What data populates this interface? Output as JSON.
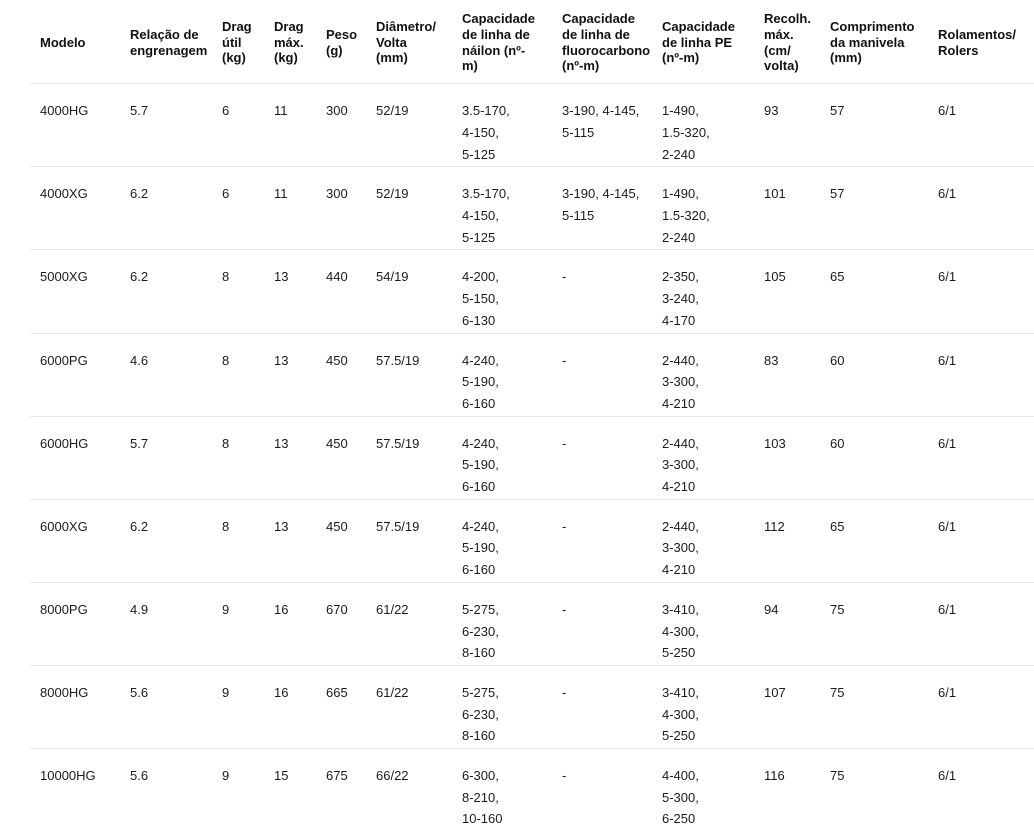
{
  "table": {
    "column_keys": [
      "modelo",
      "gear-ratio",
      "drag-util",
      "drag-max",
      "peso",
      "diametro-volta",
      "linha-nailon",
      "linha-fluorocarbono",
      "linha-pe",
      "recolhimento-max",
      "comprimento-manivela",
      "rolamentos"
    ],
    "columns": [
      "Modelo",
      "Relação de\nengrenagem",
      "Drag\nútil\n(kg)",
      "Drag\nmáx.\n(kg)",
      "Peso\n(g)",
      "Diâmetro/\nVolta\n(mm)",
      "Capacidade\nde linha de\nnáilon (nº-\nm)",
      "Capacidade\nde linha de\nfluorocarbono\n(nº-m)",
      "Capacidade\nde linha PE\n(nº-m)",
      "Recolh.\nmáx.\n(cm/\nvolta)",
      "Comprimento\nda manivela\n(mm)",
      "Rolamentos/\nRolers"
    ],
    "rows": [
      [
        "4000HG",
        "5.7",
        "6",
        "11",
        "300",
        "52/19",
        "3.5-170,\n4-150,\n5-125",
        "3-190, 4-145,\n5-115",
        "1-490,\n1.5-320,\n2-240",
        "93",
        "57",
        "6/1"
      ],
      [
        "4000XG",
        "6.2",
        "6",
        "11",
        "300",
        "52/19",
        "3.5-170,\n4-150,\n5-125",
        "3-190, 4-145,\n5-115",
        "1-490,\n1.5-320,\n2-240",
        "101",
        "57",
        "6/1"
      ],
      [
        "5000XG",
        "6.2",
        "8",
        "13",
        "440",
        "54/19",
        "4-200,\n5-150,\n6-130",
        "-",
        "2-350,\n3-240,\n4-170",
        "105",
        "65",
        "6/1"
      ],
      [
        "6000PG",
        "4.6",
        "8",
        "13",
        "450",
        "57.5/19",
        "4-240,\n5-190,\n6-160",
        "-",
        "2-440,\n3-300,\n4-210",
        "83",
        "60",
        "6/1"
      ],
      [
        "6000HG",
        "5.7",
        "8",
        "13",
        "450",
        "57.5/19",
        "4-240,\n5-190,\n6-160",
        "-",
        "2-440,\n3-300,\n4-210",
        "103",
        "60",
        "6/1"
      ],
      [
        "6000XG",
        "6.2",
        "8",
        "13",
        "450",
        "57.5/19",
        "4-240,\n5-190,\n6-160",
        "-",
        "2-440,\n3-300,\n4-210",
        "112",
        "65",
        "6/1"
      ],
      [
        "8000PG",
        "4.9",
        "9",
        "16",
        "670",
        "61/22",
        "5-275,\n6-230,\n8-160",
        "-",
        "3-410,\n4-300,\n5-250",
        "94",
        "75",
        "6/1"
      ],
      [
        "8000HG",
        "5.6",
        "9",
        "16",
        "665",
        "61/22",
        "5-275,\n6-230,\n8-160",
        "-",
        "3-410,\n4-300,\n5-250",
        "107",
        "75",
        "6/1"
      ],
      [
        "10000HG",
        "5.6",
        "9",
        "15",
        "675",
        "66/22",
        "6-300,\n8-210,\n10-160",
        "-",
        "4-400,\n5-300,\n6-250",
        "116",
        "75",
        "6/1"
      ]
    ]
  }
}
